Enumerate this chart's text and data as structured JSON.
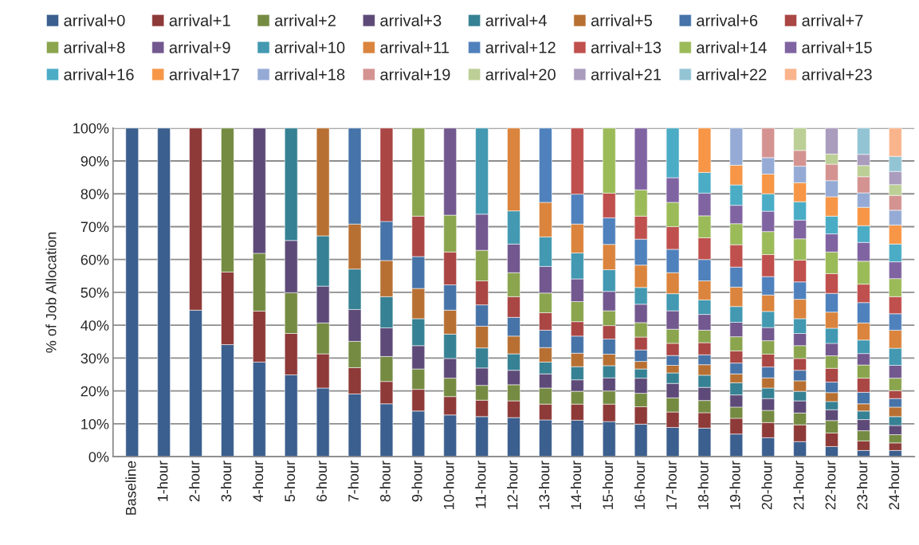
{
  "chart_data": {
    "type": "bar",
    "stacked": true,
    "ylabel": "% of Job Allocation",
    "categories": [
      "Baseline",
      "1-hour",
      "2-hour",
      "3-hour",
      "4-hour",
      "5-hour",
      "6-hour",
      "7-hour",
      "8-hour",
      "9-hour",
      "10-hour",
      "11-hour",
      "12-hour",
      "13-hour",
      "14-hour",
      "15-hour",
      "16-hour",
      "17-hour",
      "18-hour",
      "19-hour",
      "20-hour",
      "21-hour",
      "22-hour",
      "23-hour",
      "24-hour"
    ],
    "ylim": [
      0,
      100
    ],
    "yticks": [
      {
        "value": 0,
        "label": "0%"
      },
      {
        "value": 10,
        "label": "10%"
      },
      {
        "value": 20,
        "label": "20%"
      },
      {
        "value": 30,
        "label": "30%"
      },
      {
        "value": 40,
        "label": "40%"
      },
      {
        "value": 50,
        "label": "50%"
      },
      {
        "value": 60,
        "label": "60%"
      },
      {
        "value": 70,
        "label": "70%"
      },
      {
        "value": 80,
        "label": "80%"
      },
      {
        "value": 90,
        "label": "90%"
      },
      {
        "value": 100,
        "label": "100%"
      }
    ],
    "grid": "y",
    "legend": "top",
    "series": [
      {
        "name": "arrival+0",
        "color": "#3b5f8e",
        "values": [
          100,
          100,
          44.6,
          34.1,
          28.8,
          24.9,
          20.9,
          19.1,
          16.1,
          13.9,
          12.7,
          12.2,
          11.9,
          11.2,
          11.1,
          10.7,
          9.9,
          8.9,
          8.7,
          6.9,
          5.8,
          4.6,
          3.1,
          1.9,
          1.9
        ]
      },
      {
        "name": "arrival+1",
        "color": "#8e3a38",
        "values": [
          null,
          null,
          55.4,
          22.1,
          15.5,
          12.6,
          10.4,
          8.0,
          6.8,
          6.6,
          5.6,
          5.0,
          5.1,
          4.8,
          4.9,
          5.3,
          5.3,
          4.7,
          4.7,
          4.8,
          4.6,
          5.1,
          4.1,
          2.9,
          2.3
        ]
      },
      {
        "name": "arrival+2",
        "color": "#758b42",
        "values": [
          null,
          null,
          null,
          43.8,
          17.6,
          12.4,
          9.4,
          8.0,
          7.6,
          6.2,
          5.6,
          4.5,
          4.9,
          4.9,
          3.9,
          4.0,
          4.1,
          4.3,
          3.7,
          3.4,
          3.7,
          3.6,
          3.8,
          3.1,
          2.5
        ]
      },
      {
        "name": "arrival+3",
        "color": "#5e4a78",
        "values": [
          null,
          null,
          null,
          null,
          38.1,
          15.9,
          11.2,
          9.7,
          8.7,
          7.1,
          6.0,
          5.3,
          4.4,
          4.3,
          3.5,
          4.0,
          4.6,
          4.4,
          4.0,
          3.7,
          3.6,
          3.7,
          3.3,
          3.4,
          2.8
        ]
      },
      {
        "name": "arrival+4",
        "color": "#368194",
        "values": [
          null,
          null,
          null,
          null,
          null,
          34.2,
          15.3,
          12.3,
          9.5,
          8.2,
          7.4,
          6.1,
          5.0,
          3.6,
          4.0,
          3.7,
          2.8,
          3.2,
          3.7,
          3.7,
          3.2,
          2.9,
          2.5,
          2.6,
          2.7
        ]
      },
      {
        "name": "arrival+5",
        "color": "#b87032",
        "values": [
          null,
          null,
          null,
          null,
          null,
          null,
          32.8,
          13.7,
          11.0,
          9.2,
          7.3,
          6.6,
          5.4,
          4.4,
          4.1,
          3.5,
          2.3,
          2.3,
          3.2,
          2.7,
          3.1,
          3.2,
          2.7,
          2.2,
          2.9
        ]
      },
      {
        "name": "arrival+6",
        "color": "#4673a8",
        "values": [
          null,
          null,
          null,
          null,
          null,
          null,
          null,
          29.2,
          11.9,
          9.7,
          7.7,
          6.5,
          5.7,
          5.3,
          5.2,
          4.6,
          3.5,
          3.0,
          3.0,
          3.3,
          3.3,
          3.2,
          3.2,
          3.5,
          2.6
        ]
      },
      {
        "name": "arrival+7",
        "color": "#aa4644",
        "values": [
          null,
          null,
          null,
          null,
          null,
          null,
          null,
          null,
          28.4,
          12.3,
          10.0,
          7.3,
          6.3,
          5.3,
          4.4,
          4.1,
          3.9,
          3.7,
          3.7,
          3.7,
          3.9,
          3.6,
          4.2,
          4.3,
          2.4
        ]
      },
      {
        "name": "arrival+8",
        "color": "#8aa54d",
        "values": [
          null,
          null,
          null,
          null,
          null,
          null,
          null,
          null,
          null,
          26.8,
          11.2,
          9.3,
          7.3,
          6.0,
          6.1,
          4.5,
          4.4,
          4.3,
          3.8,
          4.3,
          4.1,
          3.9,
          3.8,
          4.0,
          3.8
        ]
      },
      {
        "name": "arrival+9",
        "color": "#72588f",
        "values": [
          null,
          null,
          null,
          null,
          null,
          null,
          null,
          null,
          null,
          null,
          26.5,
          11.0,
          8.7,
          8.1,
          6.9,
          5.9,
          5.6,
          5.6,
          4.8,
          4.4,
          4.0,
          3.7,
          3.8,
          3.5,
          3.9
        ]
      },
      {
        "name": "arrival+10",
        "color": "#4299b1",
        "values": [
          null,
          null,
          null,
          null,
          null,
          null,
          null,
          null,
          null,
          null,
          null,
          26.2,
          10.1,
          9.0,
          7.9,
          6.6,
          5.1,
          5.2,
          4.4,
          4.8,
          4.9,
          4.5,
          4.6,
          4.1,
          5.2
        ]
      },
      {
        "name": "arrival+11",
        "color": "#db843d",
        "values": [
          null,
          null,
          null,
          null,
          null,
          null,
          null,
          null,
          null,
          null,
          null,
          null,
          25.2,
          10.5,
          8.8,
          7.7,
          6.8,
          6.4,
          5.8,
          5.9,
          5.0,
          5.9,
          4.9,
          5.2,
          5.5
        ]
      },
      {
        "name": "arrival+12",
        "color": "#4f81bd",
        "values": [
          null,
          null,
          null,
          null,
          null,
          null,
          null,
          null,
          null,
          null,
          null,
          null,
          null,
          22.6,
          9.1,
          8.1,
          7.9,
          7.1,
          6.5,
          6.1,
          5.6,
          5.3,
          5.7,
          6.2,
          5.0
        ]
      },
      {
        "name": "arrival+13",
        "color": "#c0504d",
        "values": [
          null,
          null,
          null,
          null,
          null,
          null,
          null,
          null,
          null,
          null,
          null,
          null,
          null,
          null,
          20.1,
          7.5,
          7.0,
          6.9,
          6.6,
          6.8,
          6.7,
          6.6,
          6.0,
          5.6,
          5.2
        ]
      },
      {
        "name": "arrival+14",
        "color": "#9bbb59",
        "values": [
          null,
          null,
          null,
          null,
          null,
          null,
          null,
          null,
          null,
          null,
          null,
          null,
          null,
          null,
          null,
          19.8,
          8.0,
          7.4,
          6.7,
          6.4,
          7.0,
          6.5,
          6.6,
          7.0,
          5.5
        ]
      },
      {
        "name": "arrival+15",
        "color": "#8064a2",
        "values": [
          null,
          null,
          null,
          null,
          null,
          null,
          null,
          null,
          null,
          null,
          null,
          null,
          null,
          null,
          null,
          null,
          18.8,
          7.5,
          6.9,
          5.6,
          6.2,
          5.7,
          5.5,
          5.7,
          5.1
        ]
      },
      {
        "name": "arrival+16",
        "color": "#4bacc6",
        "values": [
          null,
          null,
          null,
          null,
          null,
          null,
          null,
          null,
          null,
          null,
          null,
          null,
          null,
          null,
          null,
          null,
          null,
          15.1,
          6.3,
          6.2,
          5.3,
          5.6,
          5.4,
          5.1,
          5.4
        ]
      },
      {
        "name": "arrival+17",
        "color": "#f79646",
        "values": [
          null,
          null,
          null,
          null,
          null,
          null,
          null,
          null,
          null,
          null,
          null,
          null,
          null,
          null,
          null,
          null,
          null,
          null,
          13.5,
          6.0,
          6.0,
          5.8,
          5.9,
          5.6,
          5.8
        ]
      },
      {
        "name": "arrival+18",
        "color": "#95abd5",
        "values": [
          null,
          null,
          null,
          null,
          null,
          null,
          null,
          null,
          null,
          null,
          null,
          null,
          null,
          null,
          null,
          null,
          null,
          null,
          null,
          11.3,
          5.0,
          5.0,
          4.9,
          4.4,
          4.5
        ]
      },
      {
        "name": "arrival+19",
        "color": "#d49391",
        "values": [
          null,
          null,
          null,
          null,
          null,
          null,
          null,
          null,
          null,
          null,
          null,
          null,
          null,
          null,
          null,
          null,
          null,
          null,
          null,
          null,
          9.0,
          4.8,
          5.0,
          4.9,
          4.5
        ]
      },
      {
        "name": "arrival+20",
        "color": "#bccf96",
        "values": [
          null,
          null,
          null,
          null,
          null,
          null,
          null,
          null,
          null,
          null,
          null,
          null,
          null,
          null,
          null,
          null,
          null,
          null,
          null,
          null,
          null,
          6.8,
          3.1,
          3.4,
          3.3
        ]
      },
      {
        "name": "arrival+21",
        "color": "#aa9cbd",
        "values": [
          null,
          null,
          null,
          null,
          null,
          null,
          null,
          null,
          null,
          null,
          null,
          null,
          null,
          null,
          null,
          null,
          null,
          null,
          null,
          null,
          null,
          null,
          7.9,
          3.4,
          4.0
        ]
      },
      {
        "name": "arrival+22",
        "color": "#93c4d4",
        "values": [
          null,
          null,
          null,
          null,
          null,
          null,
          null,
          null,
          null,
          null,
          null,
          null,
          null,
          null,
          null,
          null,
          null,
          null,
          null,
          null,
          null,
          null,
          null,
          8.0,
          4.6
        ]
      },
      {
        "name": "arrival+23",
        "color": "#f9b48c",
        "values": [
          null,
          null,
          null,
          null,
          null,
          null,
          null,
          null,
          null,
          null,
          null,
          null,
          null,
          null,
          null,
          null,
          null,
          null,
          null,
          null,
          null,
          null,
          null,
          null,
          8.6
        ]
      }
    ]
  }
}
